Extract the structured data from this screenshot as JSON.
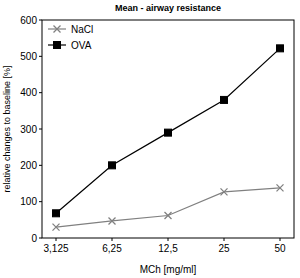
{
  "chart_data": {
    "type": "line",
    "title": "Mean - airway resistance",
    "x_label": "MCh [mg/ml]",
    "y_label": "relative changes to baseline [%]",
    "categories": [
      "3,125",
      "6,25",
      "12,5",
      "25",
      "50"
    ],
    "series": [
      {
        "name": "NaCl",
        "color": "#808080",
        "marker": "x",
        "line_style": "solid",
        "values": [
          30,
          47,
          62,
          127,
          138
        ]
      },
      {
        "name": "OVA",
        "color": "#000000",
        "marker": "square",
        "line_style": "solid",
        "values": [
          68,
          200,
          290,
          380,
          522
        ]
      }
    ],
    "ylim": [
      0,
      600
    ],
    "yticks": [
      0,
      100,
      200,
      300,
      400,
      500,
      600
    ],
    "grid": false,
    "legend": "top left"
  }
}
